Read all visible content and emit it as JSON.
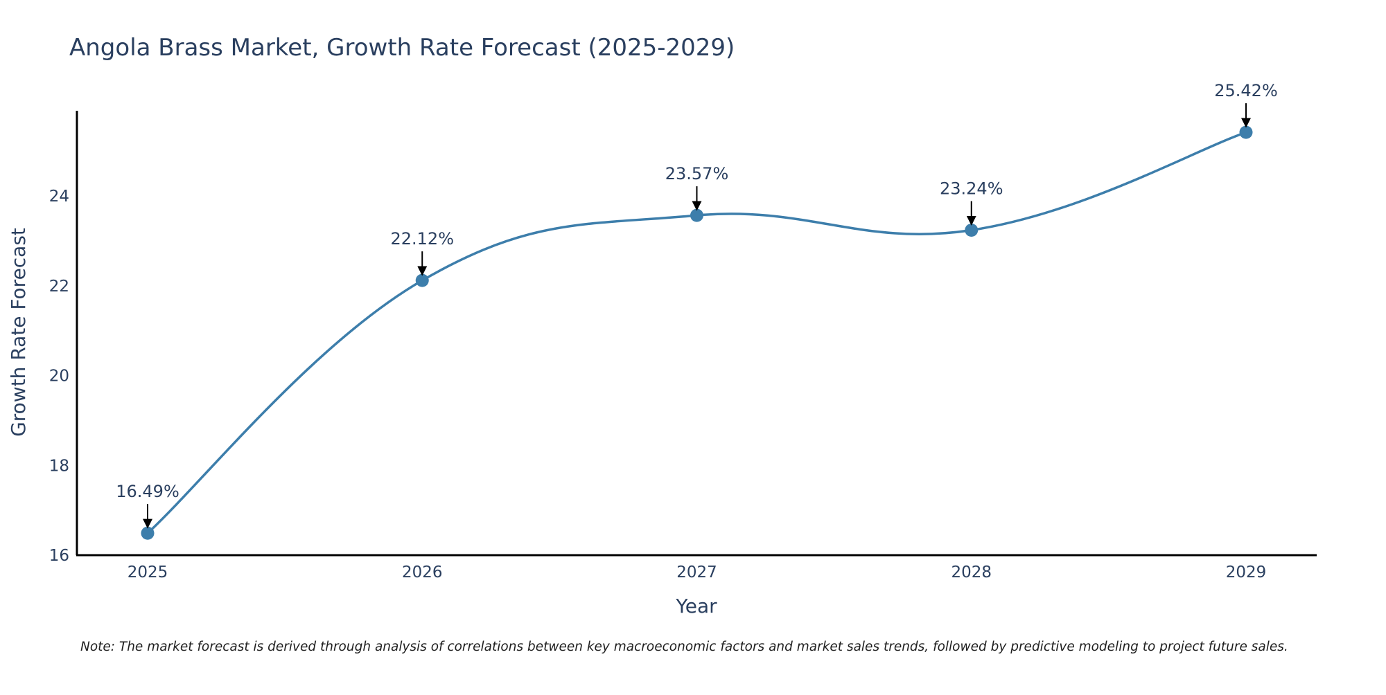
{
  "chart_data": {
    "type": "line",
    "title": "Angola Brass Market, Growth Rate Forecast (2025-2029)",
    "xlabel": "Year",
    "ylabel": "Growth Rate Forecast",
    "categories": [
      "2025",
      "2026",
      "2027",
      "2028",
      "2029"
    ],
    "series": [
      {
        "name": "Growth Rate Forecast",
        "values": [
          16.49,
          22.12,
          23.57,
          23.24,
          25.42
        ],
        "labels": [
          "16.49%",
          "22.12%",
          "23.57%",
          "23.24%",
          "25.42%"
        ]
      }
    ],
    "ylim": [
      16,
      25.9
    ],
    "yticks": [
      16,
      18,
      20,
      22,
      24
    ],
    "ytick_labels": [
      "16",
      "18",
      "20",
      "22",
      "24"
    ],
    "grid": false,
    "line_shape": "spline",
    "colors": {
      "line": "#3d7eab",
      "marker": "#3d7eab",
      "text": "#2a3f5f",
      "axis": "#000000",
      "arrow": "#000000"
    }
  },
  "note": "Note: The market forecast is derived through analysis of correlations between key macroeconomic factors and market sales trends, followed by predictive modeling to project future sales."
}
